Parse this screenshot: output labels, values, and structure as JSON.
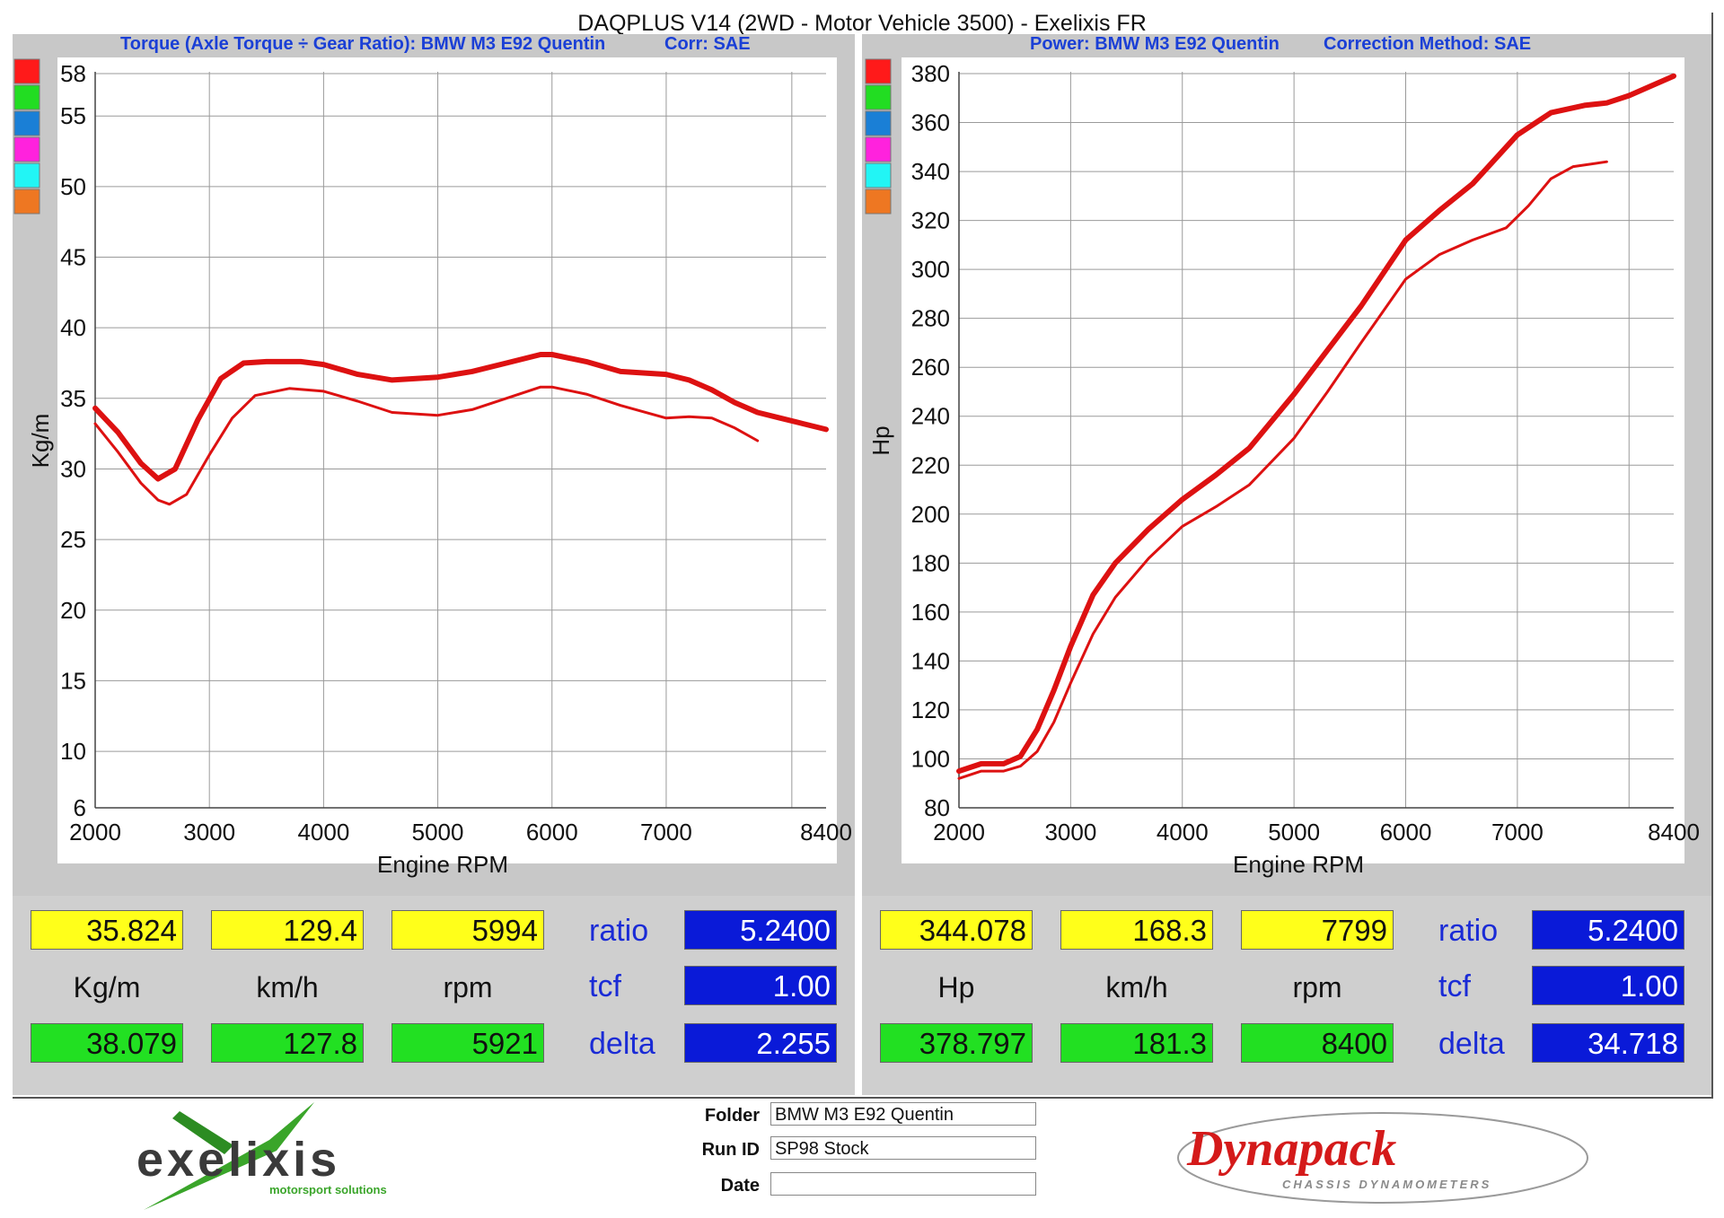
{
  "title": "DAQPLUS V14 (2WD - Motor Vehicle 3500) - Exelixis FR",
  "charts": {
    "torque": {
      "subtitle_left": "Torque (Axle Torque ÷ Gear Ratio): BMW M3 E92 Quentin",
      "subtitle_right": "Corr: SAE",
      "legend_colors": [
        "#ff1a1a",
        "#22dd22",
        "#1a7fd6",
        "#ff22dd",
        "#22f5f5",
        "#ee7722"
      ]
    },
    "power": {
      "subtitle_left": "Power: BMW M3 E92 Quentin",
      "subtitle_right": "Correction Method: SAE",
      "legend_colors": [
        "#ff1a1a",
        "#22dd22",
        "#1a7fd6",
        "#ff22dd",
        "#22f5f5",
        "#ee7722"
      ]
    }
  },
  "chart_data": [
    {
      "type": "line",
      "xlabel": "Engine RPM",
      "ylabel": "Kg/m",
      "xlim": [
        2000,
        8400
      ],
      "ylim": [
        6,
        58
      ],
      "xticks": [
        2000,
        3000,
        4000,
        5000,
        6000,
        7000,
        8400
      ],
      "yticks": [
        6,
        10,
        15,
        20,
        25,
        30,
        35,
        40,
        45,
        50,
        55,
        58
      ],
      "vgrid": [
        3000,
        4000,
        5000,
        6000,
        7000,
        8100
      ],
      "grid": true,
      "series": [
        {
          "color": "#dd1111",
          "x": [
            2000,
            2200,
            2400,
            2550,
            2700,
            2900,
            3100,
            3300,
            3500,
            3800,
            4000,
            4300,
            4600,
            5000,
            5300,
            5600,
            5900,
            6000,
            6300,
            6600,
            7000,
            7200,
            7400,
            7600,
            7800,
            8000,
            8200,
            8400
          ],
          "values": [
            34.3,
            32.6,
            30.4,
            29.3,
            30.0,
            33.5,
            36.4,
            37.5,
            37.6,
            37.6,
            37.4,
            36.7,
            36.3,
            36.5,
            36.9,
            37.5,
            38.1,
            38.1,
            37.6,
            36.9,
            36.7,
            36.3,
            35.6,
            34.7,
            34.0,
            33.6,
            33.2,
            32.8
          ]
        },
        {
          "color": "#dd1111",
          "x": [
            2000,
            2200,
            2400,
            2550,
            2650,
            2800,
            3000,
            3200,
            3400,
            3700,
            4000,
            4300,
            4600,
            5000,
            5300,
            5600,
            5900,
            6000,
            6300,
            6600,
            7000,
            7200,
            7400,
            7600,
            7800
          ],
          "values": [
            33.2,
            31.2,
            29.0,
            27.8,
            27.5,
            28.2,
            31.0,
            33.6,
            35.2,
            35.7,
            35.5,
            34.8,
            34.0,
            33.8,
            34.2,
            35.0,
            35.8,
            35.8,
            35.3,
            34.5,
            33.6,
            33.7,
            33.6,
            32.9,
            32.0
          ]
        }
      ]
    },
    {
      "type": "line",
      "xlabel": "Engine RPM",
      "ylabel": "Hp",
      "xlim": [
        2000,
        8400
      ],
      "ylim": [
        80,
        380
      ],
      "xticks": [
        2000,
        3000,
        4000,
        5000,
        6000,
        7000,
        8400
      ],
      "yticks": [
        80,
        100,
        120,
        140,
        160,
        180,
        200,
        220,
        240,
        260,
        280,
        300,
        320,
        340,
        360,
        380
      ],
      "vgrid": [
        3000,
        4000,
        5000,
        6000,
        7000,
        8000
      ],
      "grid": true,
      "series": [
        {
          "color": "#dd1111",
          "x": [
            2000,
            2200,
            2400,
            2550,
            2700,
            2850,
            3000,
            3200,
            3400,
            3700,
            4000,
            4300,
            4600,
            5000,
            5300,
            5600,
            6000,
            6300,
            6600,
            7000,
            7300,
            7600,
            7800,
            8000,
            8200,
            8400
          ],
          "values": [
            95,
            98,
            98,
            101,
            112,
            128,
            146,
            167,
            180,
            194,
            206,
            216,
            227,
            249,
            267,
            285,
            312,
            324,
            335,
            355,
            364,
            367,
            368,
            371,
            375,
            379
          ]
        },
        {
          "color": "#dd1111",
          "x": [
            2000,
            2200,
            2400,
            2550,
            2700,
            2850,
            3000,
            3200,
            3400,
            3700,
            4000,
            4300,
            4600,
            5000,
            5300,
            5600,
            6000,
            6300,
            6600,
            6900,
            7100,
            7300,
            7500,
            7800
          ],
          "values": [
            92,
            95,
            95,
            97,
            103,
            115,
            131,
            151,
            166,
            182,
            195,
            203,
            212,
            231,
            250,
            270,
            296,
            306,
            312,
            317,
            326,
            337,
            342,
            344
          ]
        }
      ]
    }
  ],
  "left_readout": {
    "yellow": [
      "35.824",
      "129.4",
      "5994"
    ],
    "units": [
      "Kg/m",
      "km/h",
      "rpm"
    ],
    "green": [
      "38.079",
      "127.8",
      "5921"
    ],
    "labels": [
      "ratio",
      "tcf",
      "delta"
    ],
    "blue": [
      "5.2400",
      "1.00",
      "2.255"
    ]
  },
  "right_readout": {
    "yellow": [
      "344.078",
      "168.3",
      "7799"
    ],
    "units": [
      "Hp",
      "km/h",
      "rpm"
    ],
    "green": [
      "378.797",
      "181.3",
      "8400"
    ],
    "labels": [
      "ratio",
      "tcf",
      "delta"
    ],
    "blue": [
      "5.2400",
      "1.00",
      "34.718"
    ]
  },
  "footer": {
    "logo_left": "exelixis",
    "logo_left_sub": "motorsport solutions",
    "folder_label": "Folder",
    "folder_value": "BMW M3 E92 Quentin",
    "runid_label": "Run ID",
    "runid_value": "SP98 Stock",
    "date_label": "Date",
    "date_value": "",
    "logo_right": "Dynapack",
    "logo_right_sub": "CHASSIS DYNAMOMETERS"
  }
}
